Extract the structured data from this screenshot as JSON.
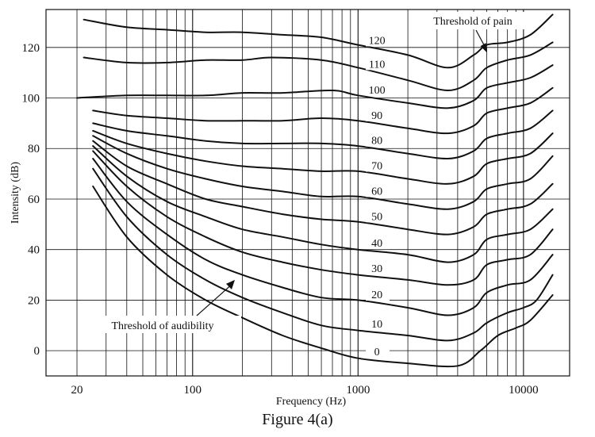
{
  "figure": {
    "caption": "Figure 4(a)"
  },
  "chart_data": {
    "type": "line",
    "xlabel": "Frequency (Hz)",
    "ylabel": "Intensity (dB)",
    "x_scale": "log",
    "xlim": [
      13,
      19000
    ],
    "ylim": [
      -10,
      135
    ],
    "x_ticks": [
      {
        "value": 20,
        "label": "20"
      },
      {
        "value": 100,
        "label": "100"
      },
      {
        "value": 1000,
        "label": "1000"
      },
      {
        "value": 10000,
        "label": "10000"
      }
    ],
    "y_ticks": [
      {
        "value": 0,
        "label": "0"
      },
      {
        "value": 20,
        "label": "20"
      },
      {
        "value": 40,
        "label": "40"
      },
      {
        "value": 60,
        "label": "60"
      },
      {
        "value": 80,
        "label": "80"
      },
      {
        "value": 100,
        "label": "100"
      },
      {
        "value": 120,
        "label": "120"
      }
    ],
    "grid": "on",
    "series": [
      {
        "name": "0",
        "points": [
          [
            25,
            65
          ],
          [
            40,
            45
          ],
          [
            70,
            30
          ],
          [
            120,
            20
          ],
          [
            200,
            13
          ],
          [
            350,
            6
          ],
          [
            600,
            1
          ],
          [
            1000,
            -3
          ],
          [
            2000,
            -5
          ],
          [
            4000,
            -6
          ],
          [
            5500,
            0
          ],
          [
            7000,
            6
          ],
          [
            9000,
            9
          ],
          [
            11000,
            12
          ],
          [
            15000,
            22
          ]
        ]
      },
      {
        "name": "10",
        "points": [
          [
            25,
            72
          ],
          [
            40,
            53
          ],
          [
            70,
            38
          ],
          [
            120,
            28
          ],
          [
            200,
            21
          ],
          [
            350,
            15
          ],
          [
            600,
            10
          ],
          [
            1000,
            8
          ],
          [
            2000,
            6
          ],
          [
            3500,
            4
          ],
          [
            5000,
            7
          ],
          [
            6000,
            11
          ],
          [
            8000,
            15
          ],
          [
            10000,
            17
          ],
          [
            12000,
            20
          ],
          [
            15000,
            30
          ]
        ]
      },
      {
        "name": "20",
        "points": [
          [
            25,
            76
          ],
          [
            40,
            59
          ],
          [
            70,
            46
          ],
          [
            120,
            36
          ],
          [
            200,
            30
          ],
          [
            350,
            25
          ],
          [
            600,
            21
          ],
          [
            1000,
            20
          ],
          [
            2000,
            17
          ],
          [
            3500,
            14
          ],
          [
            5000,
            17
          ],
          [
            6000,
            23
          ],
          [
            8000,
            26
          ],
          [
            11000,
            28
          ],
          [
            15000,
            38
          ]
        ]
      },
      {
        "name": "30",
        "points": [
          [
            25,
            79
          ],
          [
            40,
            65
          ],
          [
            70,
            53
          ],
          [
            120,
            45
          ],
          [
            200,
            39
          ],
          [
            350,
            35
          ],
          [
            600,
            32
          ],
          [
            1000,
            30
          ],
          [
            2000,
            28
          ],
          [
            3500,
            26
          ],
          [
            5000,
            28
          ],
          [
            6000,
            34
          ],
          [
            8000,
            36
          ],
          [
            11000,
            38
          ],
          [
            15000,
            48
          ]
        ]
      },
      {
        "name": "40",
        "points": [
          [
            25,
            81
          ],
          [
            40,
            69
          ],
          [
            70,
            59
          ],
          [
            120,
            53
          ],
          [
            200,
            48
          ],
          [
            350,
            45
          ],
          [
            600,
            42
          ],
          [
            1000,
            40
          ],
          [
            2000,
            38
          ],
          [
            3500,
            35
          ],
          [
            5000,
            38
          ],
          [
            6000,
            44
          ],
          [
            8000,
            46
          ],
          [
            11000,
            48
          ],
          [
            15000,
            56
          ]
        ]
      },
      {
        "name": "50",
        "points": [
          [
            25,
            83
          ],
          [
            40,
            73
          ],
          [
            70,
            66
          ],
          [
            120,
            60
          ],
          [
            200,
            57
          ],
          [
            350,
            54
          ],
          [
            600,
            52
          ],
          [
            1000,
            51
          ],
          [
            2000,
            48
          ],
          [
            3500,
            46
          ],
          [
            5000,
            49
          ],
          [
            6000,
            54
          ],
          [
            8000,
            56
          ],
          [
            11000,
            58
          ],
          [
            15000,
            66
          ]
        ]
      },
      {
        "name": "60",
        "points": [
          [
            25,
            85
          ],
          [
            40,
            78
          ],
          [
            70,
            72
          ],
          [
            120,
            68
          ],
          [
            200,
            65
          ],
          [
            350,
            63
          ],
          [
            600,
            61
          ],
          [
            1000,
            61
          ],
          [
            2000,
            58
          ],
          [
            3500,
            56
          ],
          [
            5000,
            59
          ],
          [
            6000,
            64
          ],
          [
            8000,
            66
          ],
          [
            11000,
            68
          ],
          [
            15000,
            77
          ]
        ]
      },
      {
        "name": "70",
        "points": [
          [
            25,
            87
          ],
          [
            40,
            82
          ],
          [
            70,
            78
          ],
          [
            120,
            75
          ],
          [
            200,
            73
          ],
          [
            350,
            72
          ],
          [
            600,
            71
          ],
          [
            1000,
            71
          ],
          [
            2000,
            68
          ],
          [
            3500,
            66
          ],
          [
            5000,
            69
          ],
          [
            6000,
            74
          ],
          [
            8000,
            76
          ],
          [
            11000,
            78
          ],
          [
            15000,
            86
          ]
        ]
      },
      {
        "name": "80",
        "points": [
          [
            25,
            90
          ],
          [
            40,
            87
          ],
          [
            70,
            85
          ],
          [
            120,
            83
          ],
          [
            200,
            82
          ],
          [
            350,
            82
          ],
          [
            600,
            82
          ],
          [
            1000,
            81
          ],
          [
            2000,
            78
          ],
          [
            3500,
            76
          ],
          [
            5000,
            79
          ],
          [
            6000,
            84
          ],
          [
            8000,
            86
          ],
          [
            11000,
            88
          ],
          [
            15000,
            95
          ]
        ]
      },
      {
        "name": "90",
        "points": [
          [
            25,
            95
          ],
          [
            40,
            93
          ],
          [
            70,
            92
          ],
          [
            120,
            91
          ],
          [
            200,
            91
          ],
          [
            350,
            91
          ],
          [
            600,
            92
          ],
          [
            1000,
            91
          ],
          [
            2000,
            88
          ],
          [
            3500,
            86
          ],
          [
            5000,
            89
          ],
          [
            6000,
            94
          ],
          [
            8000,
            96
          ],
          [
            11000,
            98
          ],
          [
            15000,
            104
          ]
        ]
      },
      {
        "name": "100",
        "points": [
          [
            20,
            100
          ],
          [
            40,
            101
          ],
          [
            70,
            101
          ],
          [
            120,
            101
          ],
          [
            200,
            102
          ],
          [
            350,
            102
          ],
          [
            700,
            103
          ],
          [
            1000,
            101
          ],
          [
            2000,
            98
          ],
          [
            3500,
            96
          ],
          [
            5000,
            99
          ],
          [
            6000,
            104
          ],
          [
            8000,
            106
          ],
          [
            11000,
            108
          ],
          [
            15000,
            113
          ]
        ]
      },
      {
        "name": "110",
        "points": [
          [
            22,
            116
          ],
          [
            40,
            114
          ],
          [
            70,
            114
          ],
          [
            120,
            115
          ],
          [
            200,
            115
          ],
          [
            300,
            116
          ],
          [
            600,
            115
          ],
          [
            1000,
            112
          ],
          [
            2000,
            107
          ],
          [
            3500,
            103
          ],
          [
            5000,
            107
          ],
          [
            6000,
            112
          ],
          [
            8000,
            115
          ],
          [
            11000,
            117
          ],
          [
            15000,
            122
          ]
        ]
      },
      {
        "name": "120",
        "points": [
          [
            22,
            131
          ],
          [
            40,
            128
          ],
          [
            70,
            127
          ],
          [
            120,
            126
          ],
          [
            200,
            126
          ],
          [
            350,
            125
          ],
          [
            600,
            124
          ],
          [
            1000,
            121
          ],
          [
            2000,
            117
          ],
          [
            3500,
            112
          ],
          [
            5000,
            117
          ],
          [
            6000,
            121
          ],
          [
            8000,
            122
          ],
          [
            11000,
            125
          ],
          [
            15000,
            133
          ]
        ]
      }
    ],
    "annotations": [
      {
        "text": "Threshold of pain",
        "target": [
          6000,
          118
        ]
      },
      {
        "text": "Threshold of audibility",
        "target": [
          180,
          28
        ]
      }
    ]
  }
}
